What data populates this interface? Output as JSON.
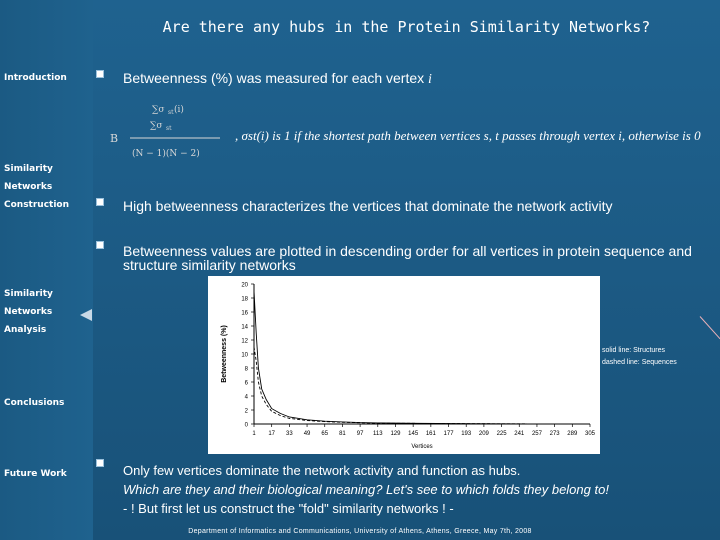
{
  "title": "Are there any hubs in the Protein Similarity Networks?",
  "sidebar": {
    "items": [
      {
        "label": "Introduction"
      },
      {
        "label": "Similarity Networks Construction"
      },
      {
        "label": "Similarity Networks Analysis"
      },
      {
        "label": "Conclusions"
      },
      {
        "label": "Future Work"
      }
    ]
  },
  "bullets": {
    "b1_text": "Betweenness (%) was measured for each vertex ",
    "b1_var": "i",
    "formula_note": ", σst(i) is 1 if the shortest path between vertices s, t passes through vertex i, otherwise is 0",
    "b2_text": "High betweenness characterizes the vertices that dominate the network activity",
    "b3_text": "Betweenness values are plotted in descending order for all vertices in protein sequence and structure similarity networks",
    "b4_line1": "Only few vertices dominate the network activity and function as hubs.",
    "b4_line2": "Which are they and their biological meaning? Let's see to which folds they belong to!",
    "b4_line3": "- ! But first let us construct the \"fold\" similarity networks ! -"
  },
  "legend": {
    "solid": "solid line: Structures",
    "dashed": "dashed line: Sequences"
  },
  "chart_data": {
    "type": "line",
    "xlabel": "Vertices",
    "ylabel": "Betweenness (%)",
    "ylim": [
      0,
      20
    ],
    "x_ticks": [
      "1",
      "17",
      "33",
      "49",
      "65",
      "81",
      "97",
      "113",
      "129",
      "145",
      "161",
      "177",
      "193",
      "209",
      "225",
      "241",
      "257",
      "273",
      "289",
      "305"
    ],
    "y_ticks": [
      "20",
      "18",
      "16",
      "14",
      "12",
      "10",
      "8",
      "6",
      "4",
      "2",
      "0"
    ],
    "series": [
      {
        "style": "solid",
        "x": [
          1,
          3,
          5,
          8,
          12,
          17,
          25,
          33,
          49,
          65,
          81,
          97,
          113,
          150,
          200,
          250,
          305
        ],
        "values": [
          19,
          13,
          8,
          5,
          3.5,
          2.2,
          1.5,
          1.0,
          0.6,
          0.4,
          0.3,
          0.2,
          0.15,
          0.1,
          0.05,
          0.02,
          0
        ]
      },
      {
        "style": "dashed",
        "x": [
          1,
          3,
          5,
          8,
          12,
          17,
          25,
          33,
          49,
          65,
          81,
          97,
          113,
          150,
          200,
          250,
          305
        ],
        "values": [
          11,
          9,
          6,
          4,
          2.8,
          1.8,
          1.2,
          0.8,
          0.5,
          0.35,
          0.25,
          0.18,
          0.12,
          0.08,
          0.04,
          0.02,
          0
        ]
      }
    ]
  },
  "footer": "Department of Informatics and Communications, University of Athens, Athens, Greece, May 7th, 2008"
}
